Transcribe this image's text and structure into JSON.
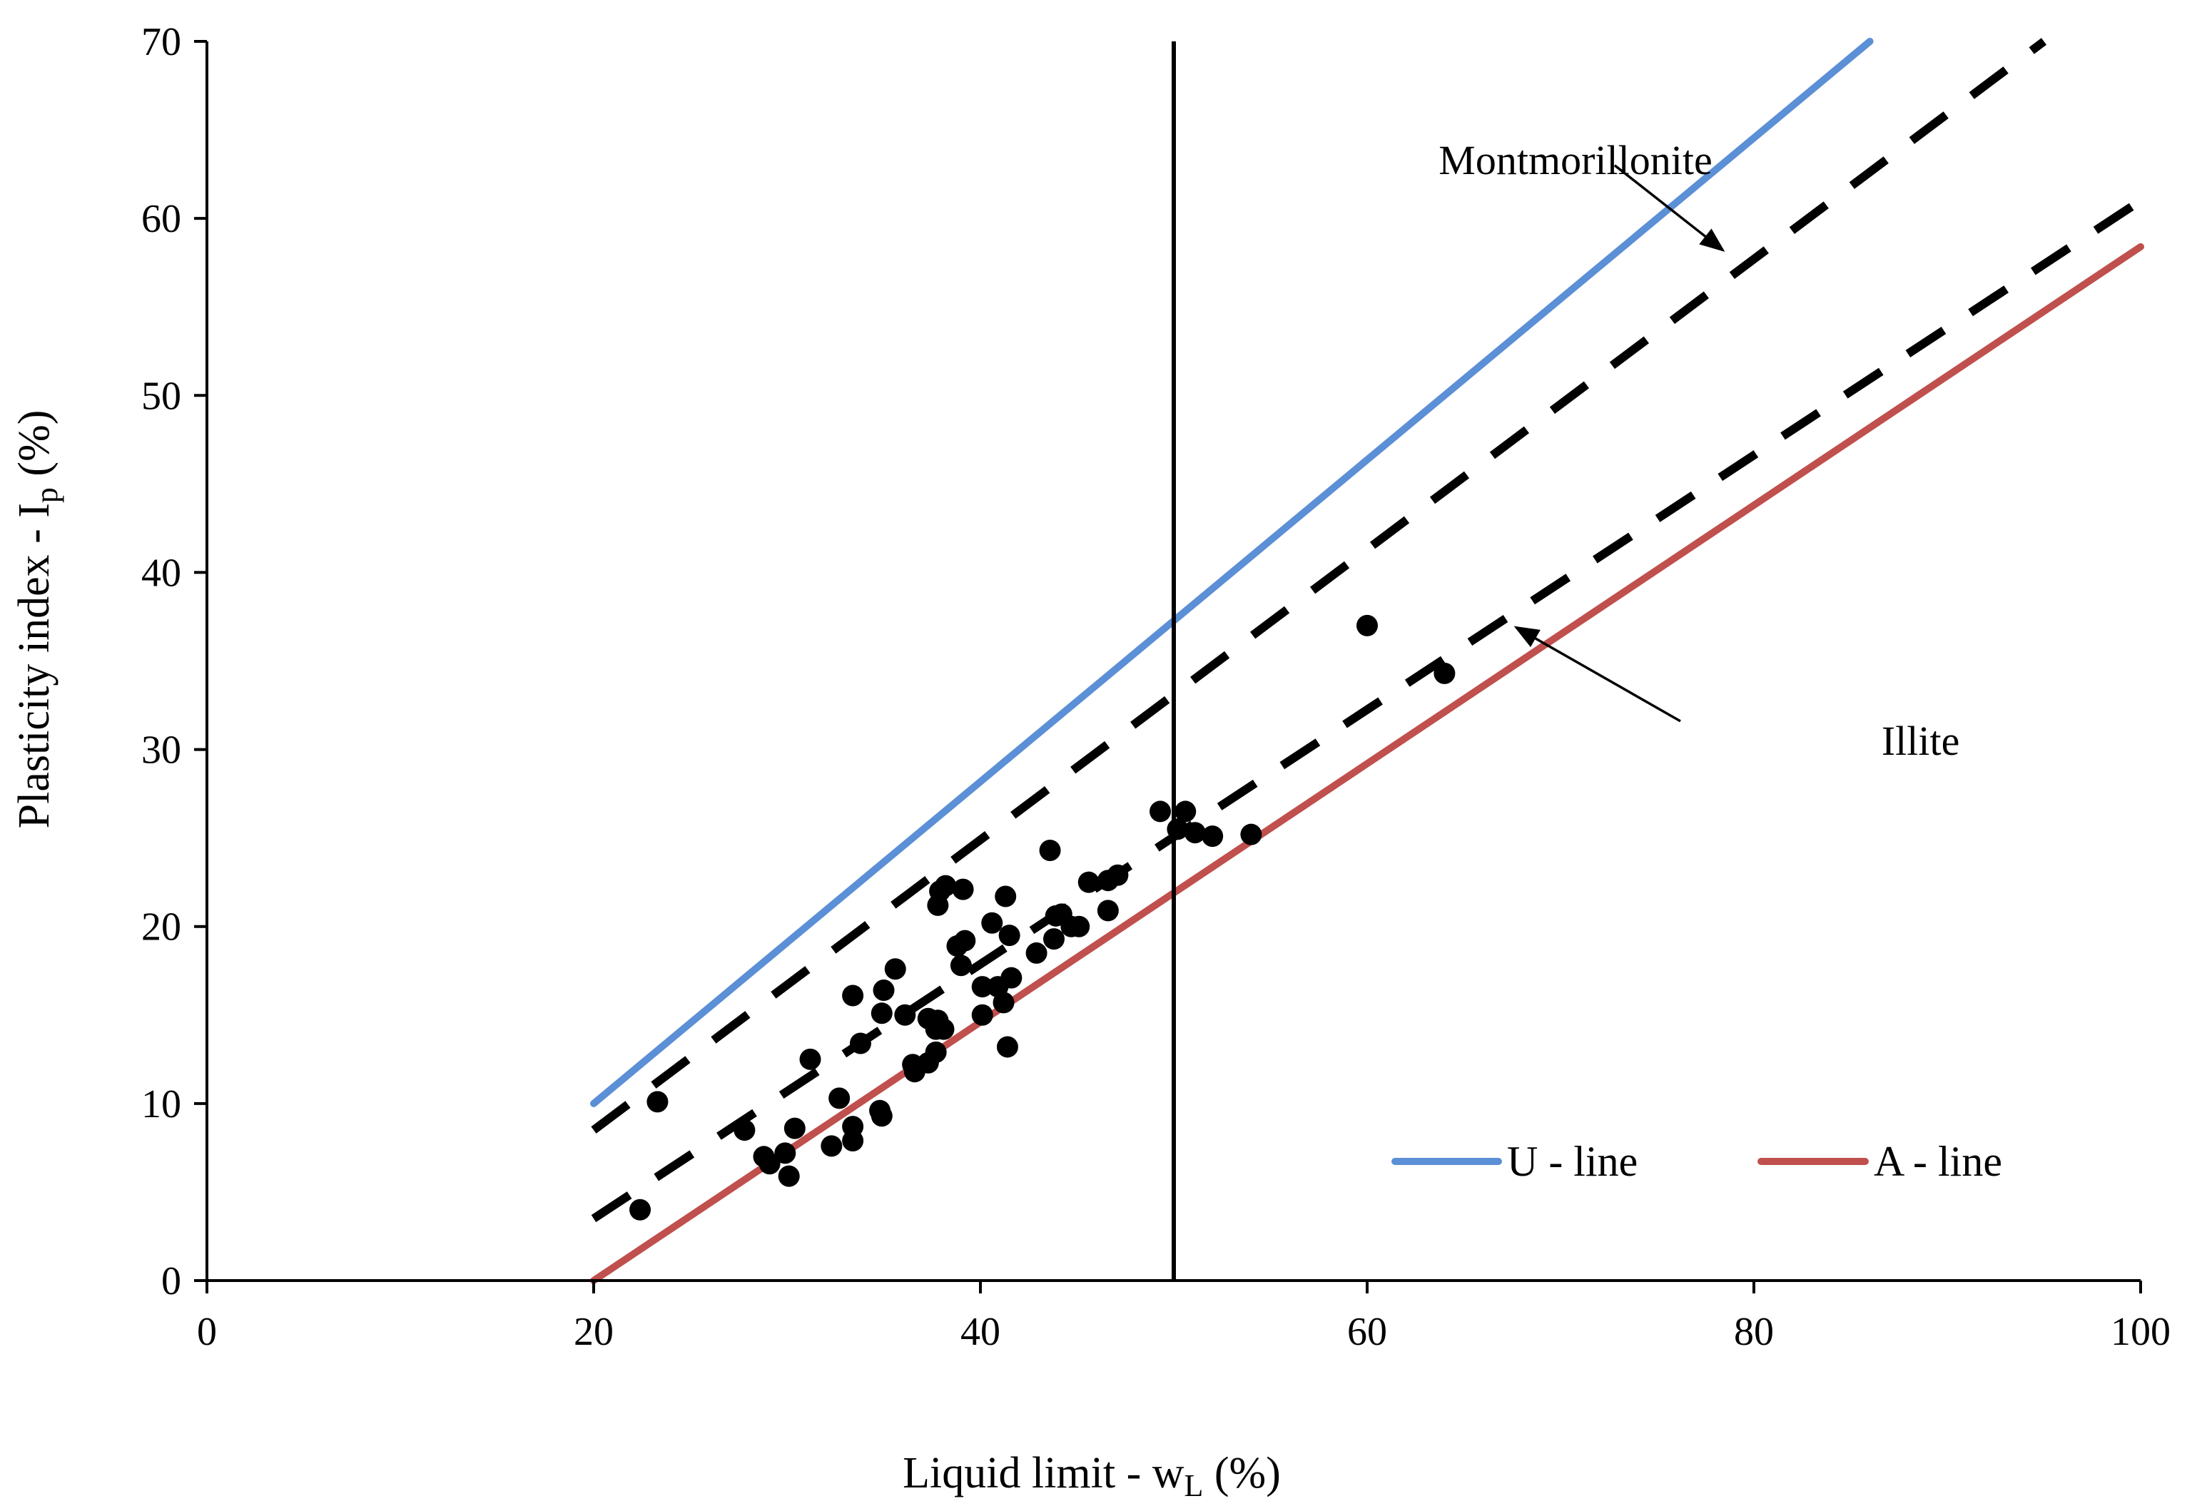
{
  "chart_data": {
    "type": "scatter",
    "title": "",
    "xlabel": {
      "main": "Liquid limit - w",
      "sub": "L",
      "unit": " (%)"
    },
    "ylabel": {
      "main": "Plasticity index - I",
      "sub": "p",
      "unit": " (%)"
    },
    "xlim": [
      0,
      100
    ],
    "ylim": [
      0,
      70
    ],
    "x_ticks": [
      0,
      20,
      40,
      60,
      80,
      100
    ],
    "y_ticks": [
      0,
      10,
      20,
      30,
      40,
      50,
      60,
      70
    ],
    "grid": false,
    "colors": {
      "u_line": "#5B8FD6",
      "a_line": "#C0504D",
      "points": "#000000",
      "dashed": "#000000"
    },
    "reference_lines": [
      {
        "name": "U - line",
        "x": [
          20,
          86
        ],
        "y": [
          10,
          70
        ]
      },
      {
        "name": "A - line",
        "x": [
          20,
          100
        ],
        "y": [
          0,
          58.4
        ]
      }
    ],
    "boundary_line": {
      "x": 50
    },
    "dashed_lines": [
      {
        "name": "Montmorillonite",
        "x": [
          20,
          95
        ],
        "y": [
          8.5,
          70
        ]
      },
      {
        "name": "Illite",
        "x": [
          20,
          100
        ],
        "y": [
          3.5,
          61
        ]
      }
    ],
    "annotations": [
      {
        "text": "Montmorillonite",
        "text_at": [
          63.7,
          62.5
        ],
        "arrow_from": [
          72.8,
          63.0
        ],
        "arrow_to": [
          78.4,
          58.2
        ]
      },
      {
        "text": "Illite",
        "text_at": [
          86.6,
          29.7
        ],
        "arrow_from": [
          76.2,
          31.6
        ],
        "arrow_to": [
          67.7,
          36.9
        ]
      }
    ],
    "legend": {
      "position": "bottom-right",
      "entries": [
        "U - line",
        "A - line"
      ]
    },
    "points": [
      [
        22.4,
        4.0
      ],
      [
        23.3,
        10.1
      ],
      [
        27.8,
        8.5
      ],
      [
        28.8,
        7.0
      ],
      [
        29.1,
        6.6
      ],
      [
        29.9,
        7.2
      ],
      [
        30.1,
        5.9
      ],
      [
        30.4,
        8.6
      ],
      [
        31.2,
        12.5
      ],
      [
        32.3,
        7.6
      ],
      [
        32.7,
        10.3
      ],
      [
        33.4,
        8.7
      ],
      [
        33.4,
        7.9
      ],
      [
        33.4,
        16.1
      ],
      [
        33.8,
        13.4
      ],
      [
        34.8,
        9.6
      ],
      [
        34.9,
        9.3
      ],
      [
        34.9,
        15.1
      ],
      [
        35.0,
        16.4
      ],
      [
        35.6,
        17.6
      ],
      [
        36.1,
        15.0
      ],
      [
        36.5,
        12.2
      ],
      [
        36.6,
        11.8
      ],
      [
        37.3,
        12.3
      ],
      [
        37.3,
        14.8
      ],
      [
        37.7,
        12.9
      ],
      [
        37.7,
        14.2
      ],
      [
        37.8,
        14.7
      ],
      [
        37.8,
        21.2
      ],
      [
        37.9,
        22.0
      ],
      [
        38.1,
        14.2
      ],
      [
        38.2,
        22.3
      ],
      [
        38.8,
        18.9
      ],
      [
        39.0,
        17.8
      ],
      [
        39.1,
        22.1
      ],
      [
        39.2,
        19.2
      ],
      [
        40.1,
        16.6
      ],
      [
        40.1,
        15.0
      ],
      [
        40.6,
        20.2
      ],
      [
        40.9,
        16.6
      ],
      [
        41.2,
        15.7
      ],
      [
        41.3,
        21.7
      ],
      [
        41.4,
        13.2
      ],
      [
        41.5,
        19.5
      ],
      [
        41.6,
        17.1
      ],
      [
        42.9,
        18.5
      ],
      [
        43.6,
        24.3
      ],
      [
        43.8,
        19.3
      ],
      [
        43.9,
        20.6
      ],
      [
        44.2,
        20.7
      ],
      [
        44.7,
        20.0
      ],
      [
        45.1,
        20.0
      ],
      [
        45.6,
        22.5
      ],
      [
        46.6,
        20.9
      ],
      [
        46.6,
        22.6
      ],
      [
        47.1,
        22.9
      ],
      [
        49.3,
        26.5
      ],
      [
        50.2,
        25.5
      ],
      [
        50.6,
        26.5
      ],
      [
        51.1,
        25.3
      ],
      [
        52.0,
        25.1
      ],
      [
        54.0,
        25.2
      ],
      [
        60.0,
        37.0
      ],
      [
        64.0,
        34.3
      ]
    ]
  }
}
